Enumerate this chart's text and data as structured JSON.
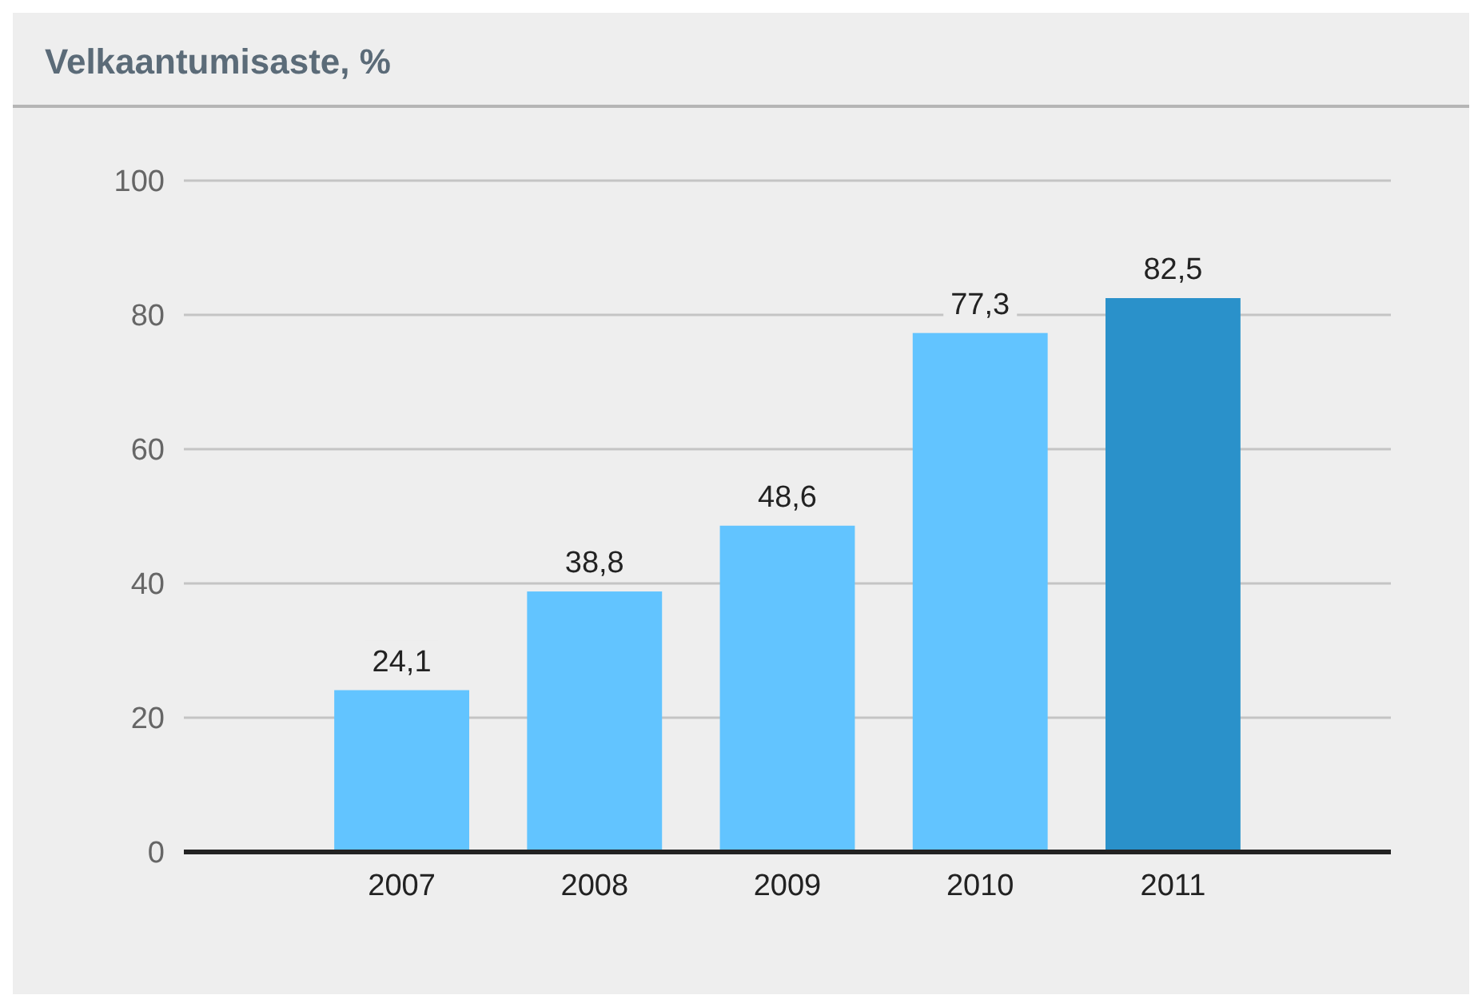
{
  "chart_data": {
    "type": "bar",
    "title": "Velkaantumisaste, %",
    "categories": [
      "2007",
      "2008",
      "2009",
      "2010",
      "2011"
    ],
    "values": [
      24.1,
      38.8,
      48.6,
      77.3,
      82.5
    ],
    "colors": [
      "#62c4ff",
      "#62c4ff",
      "#62c4ff",
      "#62c4ff",
      "#2a91ca"
    ],
    "value_labels": [
      "24,1",
      "38,8",
      "48,6",
      "77,3",
      "82,5"
    ],
    "ylim": [
      0,
      100
    ],
    "yticks": [
      0,
      20,
      40,
      60,
      80,
      100
    ],
    "grid": "y"
  }
}
